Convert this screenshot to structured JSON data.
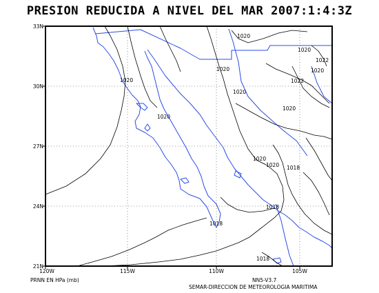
{
  "title": "PRESION REDUCIDA A NIVEL DEL MAR 2007:1:4:3Z",
  "lat_labels": [
    "33N",
    "30N",
    "27N",
    "24N",
    "21N"
  ],
  "lon_labels": [
    "120W",
    "115W",
    "110W",
    "105W"
  ],
  "isobar_labels": [
    "1020",
    "1020",
    "1020",
    "1022",
    "1020",
    "1022",
    "1020",
    "1020",
    "1020",
    "1020",
    "1020",
    "1020",
    "1018",
    "1018",
    "1018",
    "1018"
  ],
  "footer": {
    "units": "PRNN EN HPa (mb)",
    "model": "NN5-V3.7",
    "agency": "SEMAR-DIRECCION DE METEOROLOGIA MARITIMA"
  },
  "colors": {
    "coast": "#2b4ce6",
    "isobar": "#000000",
    "grid": "#777777"
  }
}
